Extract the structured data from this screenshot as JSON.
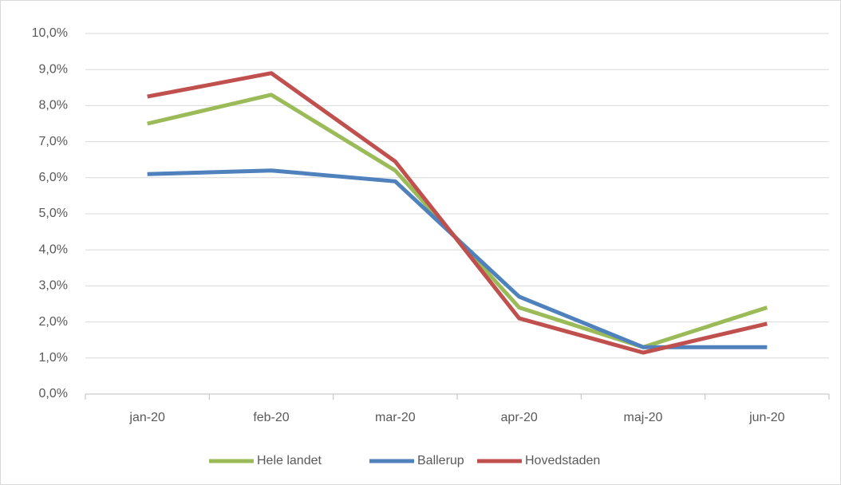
{
  "chart_data": {
    "type": "line",
    "categories": [
      "jan-20",
      "feb-20",
      "mar-20",
      "apr-20",
      "maj-20",
      "jun-20"
    ],
    "series": [
      {
        "name": "Hele landet",
        "color": "#9bbb59",
        "values": [
          7.5,
          8.3,
          6.2,
          2.4,
          1.3,
          2.4
        ]
      },
      {
        "name": "Ballerup",
        "color": "#4f81bd",
        "values": [
          6.1,
          6.2,
          5.9,
          2.7,
          1.3,
          1.3
        ]
      },
      {
        "name": "Hovedstaden",
        "color": "#c0504d",
        "values": [
          8.25,
          8.9,
          6.45,
          2.1,
          1.15,
          1.95
        ]
      }
    ],
    "ylim": [
      0,
      10
    ],
    "yticks": [
      {
        "value": 0,
        "label": "0,0%"
      },
      {
        "value": 1,
        "label": "1,0%"
      },
      {
        "value": 2,
        "label": "2,0%"
      },
      {
        "value": 3,
        "label": "3,0%"
      },
      {
        "value": 4,
        "label": "4,0%"
      },
      {
        "value": 5,
        "label": "5,0%"
      },
      {
        "value": 6,
        "label": "6,0%"
      },
      {
        "value": 7,
        "label": "7,0%"
      },
      {
        "value": 8,
        "label": "8,0%"
      },
      {
        "value": 9,
        "label": "9,0%"
      },
      {
        "value": 10,
        "label": "10,0%"
      }
    ],
    "grid": true,
    "legend": "bottom"
  }
}
